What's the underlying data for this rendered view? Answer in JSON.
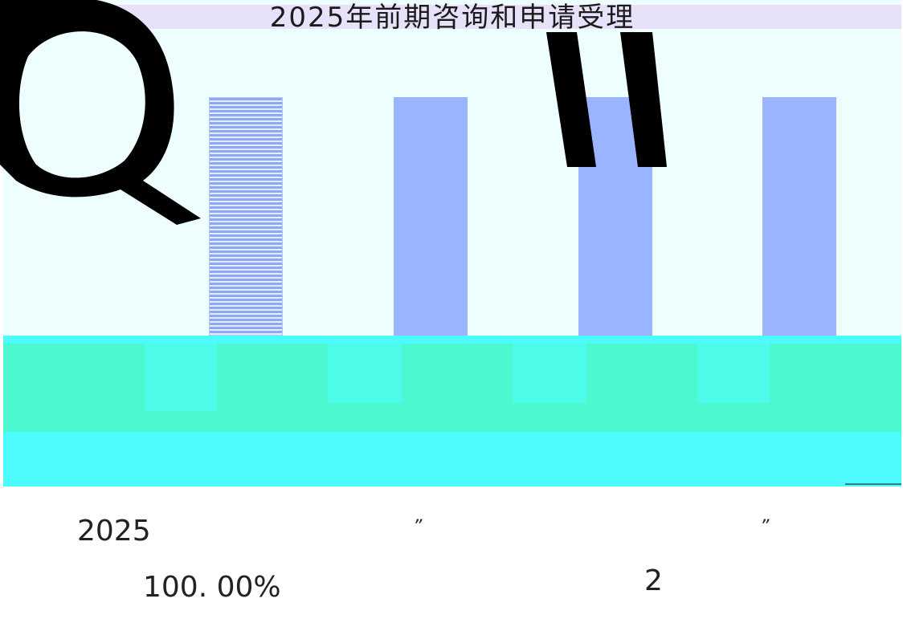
{
  "chart_data": {
    "type": "bar",
    "title": "2025年前期咨询和申请受理",
    "categories": [
      "",
      "",
      "",
      ""
    ],
    "values": [
      100,
      100,
      100,
      100
    ],
    "ylim": [
      0,
      100
    ],
    "hatched_bar_index": 0,
    "bar_color": "#9bb4ff",
    "grid": false
  },
  "text": {
    "year": "2025",
    "open_quote": "”",
    "close_quote": "”",
    "percentage": "100. 00%",
    "count": "2"
  },
  "colors": {
    "plot_background": "#eefdfd",
    "title_band": "#e7e2fa",
    "table_background": "#4dfbfd",
    "table_row": "#4cf8d0"
  }
}
